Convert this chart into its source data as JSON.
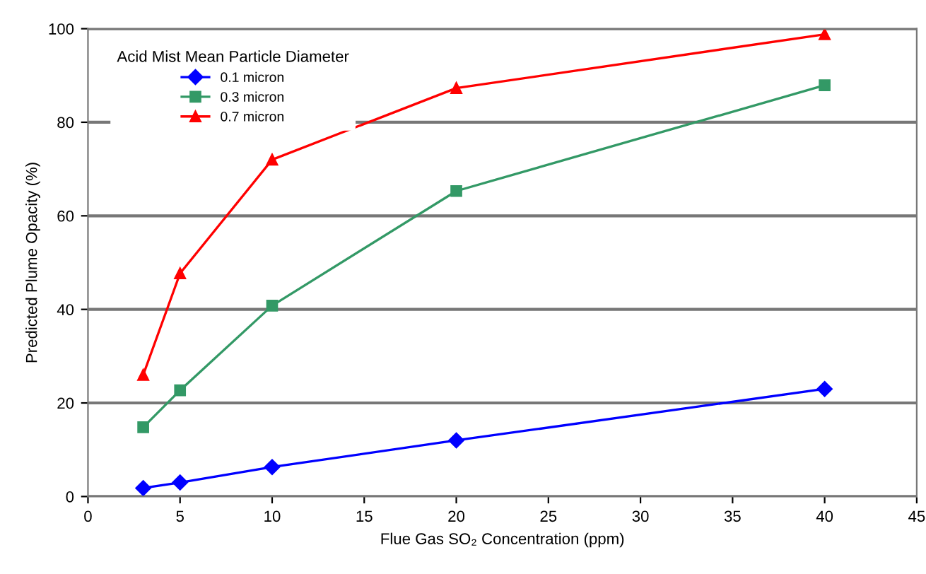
{
  "chart_data": {
    "type": "line",
    "xlabel": "Flue Gas SO₂ Concentration (ppm)",
    "ylabel": "Predicted Plume Opacity (%)",
    "legend_title": "Acid Mist Mean Particle Diameter",
    "x": [
      3,
      5,
      10,
      20,
      40
    ],
    "series": [
      {
        "name": "0.1 micron",
        "color": "#0000ff",
        "marker": "diamond",
        "values": [
          1.8,
          3,
          6.3,
          12,
          23
        ]
      },
      {
        "name": "0.3 micron",
        "color": "#339966",
        "marker": "square",
        "values": [
          14.8,
          22.7,
          40.8,
          65.3,
          87.9
        ]
      },
      {
        "name": "0.7 micron",
        "color": "#ff0000",
        "marker": "triangle",
        "values": [
          26,
          47.7,
          72,
          87.3,
          98.8
        ]
      }
    ],
    "xlim": [
      0,
      45
    ],
    "xticks": [
      0,
      5,
      10,
      15,
      20,
      25,
      30,
      35,
      40,
      45
    ],
    "ylim": [
      0,
      100
    ],
    "yticks": [
      0,
      20,
      40,
      60,
      80,
      100
    ],
    "grid": "y",
    "legend": "top left"
  }
}
